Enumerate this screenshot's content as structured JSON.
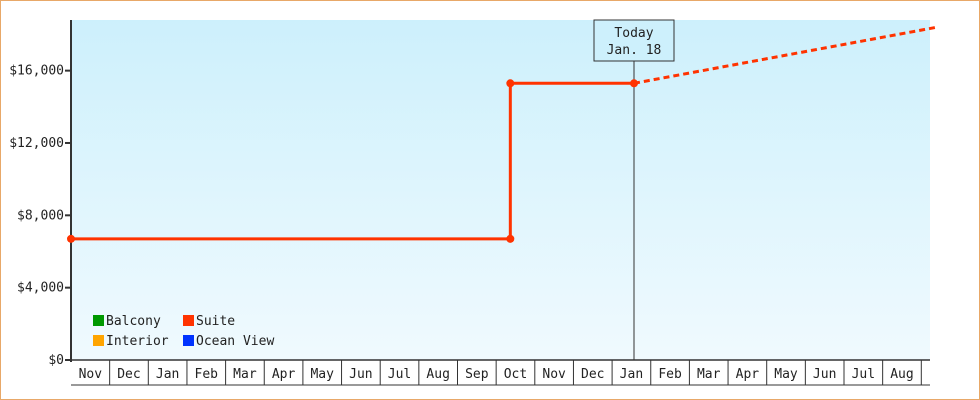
{
  "chart_data": {
    "type": "line",
    "title": "",
    "xlabel": "",
    "ylabel": "",
    "ylim": [
      0,
      18800
    ],
    "y_ticks": [
      0,
      4000,
      8000,
      12000,
      16000
    ],
    "y_tick_labels": [
      "$0",
      "$4,000",
      "$8,000",
      "$12,000",
      "$16,000"
    ],
    "x_tick_labels": [
      "Nov",
      "Dec",
      "Jan",
      "Feb",
      "Mar",
      "Apr",
      "May",
      "Jun",
      "Jul",
      "Aug",
      "Sep",
      "Oct",
      "Nov",
      "Dec",
      "Jan",
      "Feb",
      "Mar",
      "Apr",
      "May",
      "Jun",
      "Jul",
      "Aug"
    ],
    "grid": false,
    "legend_placement": "bottom-left",
    "legend": [
      {
        "name": "Balcony",
        "color": "#009900"
      },
      {
        "name": "Suite",
        "color": "#ff3300"
      },
      {
        "name": "Interior",
        "color": "#ffa500"
      },
      {
        "name": "Ocean View",
        "color": "#0033ff"
      }
    ],
    "series": [
      {
        "name": "Suite",
        "color": "#ff3300",
        "points": [
          {
            "date": "Nov 1",
            "value": 6700
          },
          {
            "date": "Oct 12",
            "value": 6700
          },
          {
            "date": "Oct 12",
            "value": 15300
          },
          {
            "date": "Jan 18",
            "value": 15300
          }
        ],
        "projection": [
          {
            "date": "Jan 18",
            "value": 15300
          },
          {
            "date": "Sep 13",
            "value": 18400
          }
        ]
      }
    ],
    "annotation": {
      "line1": "Today",
      "line2": "Jan. 18",
      "date": "Jan 18"
    },
    "background_gradient": [
      "#cdf0fc",
      "#f0fafe"
    ]
  }
}
